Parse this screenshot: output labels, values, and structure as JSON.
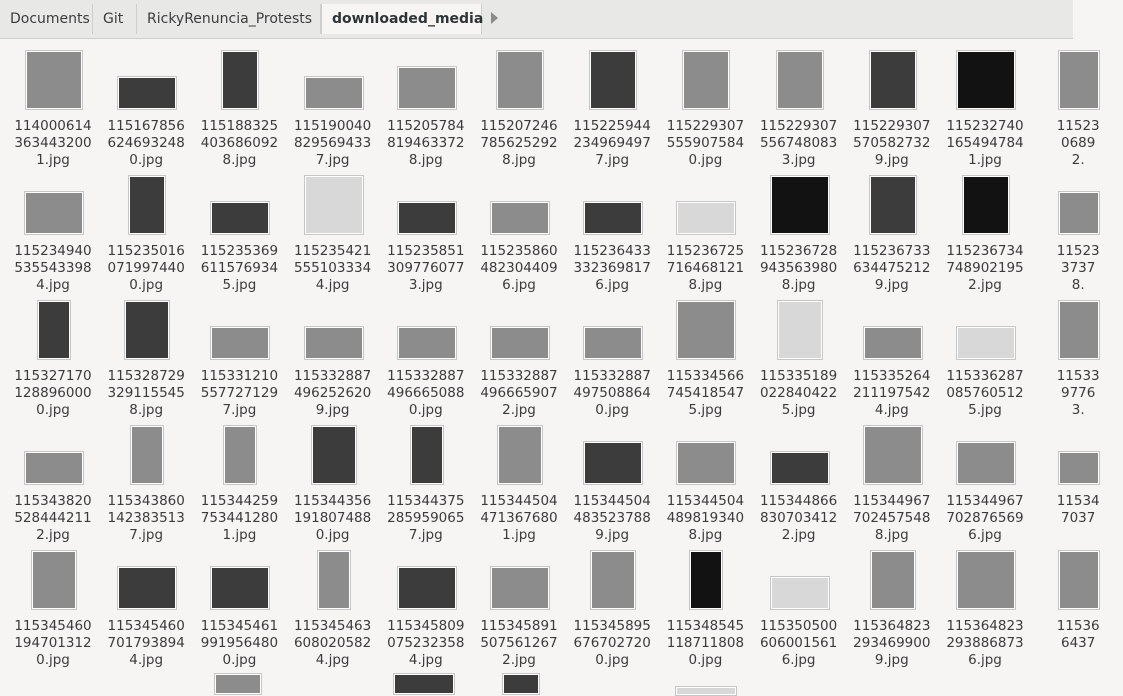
{
  "breadcrumb": [
    "Documents",
    "Git",
    "RickyRenuncia_Protests",
    "downloaded_media"
  ],
  "rows": [
    [
      {
        "l1": "114000614",
        "l2": "363443200",
        "l3": "1.jpg",
        "w": 56,
        "h": 58,
        "t": "mid"
      },
      {
        "l1": "115167856",
        "l2": "624693248",
        "l3": "0.jpg",
        "w": 58,
        "h": 32,
        "t": "dark"
      },
      {
        "l1": "115188325",
        "l2": "403686092",
        "l3": "8.jpg",
        "w": 36,
        "h": 58,
        "t": "dark"
      },
      {
        "l1": "115190040",
        "l2": "829569433",
        "l3": "7.jpg",
        "w": 58,
        "h": 32,
        "t": "mid"
      },
      {
        "l1": "115205784",
        "l2": "819463372",
        "l3": "8.jpg",
        "w": 58,
        "h": 42,
        "t": "mid"
      },
      {
        "l1": "115207246",
        "l2": "785625292",
        "l3": "8.jpg",
        "w": 46,
        "h": 58,
        "t": "mid"
      },
      {
        "l1": "115225944",
        "l2": "234969497",
        "l3": "7.jpg",
        "w": 46,
        "h": 58,
        "t": "dark"
      },
      {
        "l1": "115229307",
        "l2": "555907584",
        "l3": "0.jpg",
        "w": 46,
        "h": 58,
        "t": "mid"
      },
      {
        "l1": "115229307",
        "l2": "556748083",
        "l3": "3.jpg",
        "w": 46,
        "h": 58,
        "t": "mid"
      },
      {
        "l1": "115229307",
        "l2": "570582732",
        "l3": "9.jpg",
        "w": 46,
        "h": 58,
        "t": "dark"
      },
      {
        "l1": "115232740",
        "l2": "165494784",
        "l3": "1.jpg",
        "w": 58,
        "h": 58,
        "t": "black"
      },
      {
        "l1": "11523",
        "l2": "0689",
        "l3": "2.",
        "w": 40,
        "h": 58,
        "t": "mid"
      }
    ],
    [
      {
        "l1": "115234940",
        "l2": "535543398",
        "l3": "4.jpg",
        "w": 58,
        "h": 42,
        "t": "mid"
      },
      {
        "l1": "115235016",
        "l2": "071997440",
        "l3": "0.jpg",
        "w": 36,
        "h": 58,
        "t": "dark"
      },
      {
        "l1": "115235369",
        "l2": "611576934",
        "l3": "5.jpg",
        "w": 58,
        "h": 32,
        "t": "dark"
      },
      {
        "l1": "115235421",
        "l2": "555103334",
        "l3": "4.jpg",
        "w": 58,
        "h": 58,
        "t": "light"
      },
      {
        "l1": "115235851",
        "l2": "309776077",
        "l3": "3.jpg",
        "w": 58,
        "h": 32,
        "t": "dark"
      },
      {
        "l1": "115235860",
        "l2": "482304409",
        "l3": "6.jpg",
        "w": 58,
        "h": 32,
        "t": "mid"
      },
      {
        "l1": "115236433",
        "l2": "332369817",
        "l3": "6.jpg",
        "w": 58,
        "h": 32,
        "t": "dark"
      },
      {
        "l1": "115236725",
        "l2": "716468121",
        "l3": "8.jpg",
        "w": 58,
        "h": 32,
        "t": "light"
      },
      {
        "l1": "115236728",
        "l2": "943563980",
        "l3": "8.jpg",
        "w": 58,
        "h": 58,
        "t": "black"
      },
      {
        "l1": "115236733",
        "l2": "634475212",
        "l3": "9.jpg",
        "w": 46,
        "h": 58,
        "t": "dark"
      },
      {
        "l1": "115236734",
        "l2": "748902195",
        "l3": "2.jpg",
        "w": 46,
        "h": 58,
        "t": "black"
      },
      {
        "l1": "11523",
        "l2": "3737",
        "l3": "8.",
        "w": 40,
        "h": 42,
        "t": "mid"
      }
    ],
    [
      {
        "l1": "115327170",
        "l2": "128896000",
        "l3": "0.jpg",
        "w": 32,
        "h": 58,
        "t": "dark"
      },
      {
        "l1": "115328729",
        "l2": "329115545",
        "l3": "8.jpg",
        "w": 44,
        "h": 58,
        "t": "dark"
      },
      {
        "l1": "115331210",
        "l2": "557727129",
        "l3": "7.jpg",
        "w": 58,
        "h": 32,
        "t": "mid"
      },
      {
        "l1": "115332887",
        "l2": "496252620",
        "l3": "9.jpg",
        "w": 58,
        "h": 32,
        "t": "mid"
      },
      {
        "l1": "115332887",
        "l2": "496665088",
        "l3": "0.jpg",
        "w": 58,
        "h": 32,
        "t": "mid"
      },
      {
        "l1": "115332887",
        "l2": "496665907",
        "l3": "2.jpg",
        "w": 58,
        "h": 32,
        "t": "mid"
      },
      {
        "l1": "115332887",
        "l2": "497508864",
        "l3": "0.jpg",
        "w": 58,
        "h": 32,
        "t": "mid"
      },
      {
        "l1": "115334566",
        "l2": "745418547",
        "l3": "5.jpg",
        "w": 58,
        "h": 58,
        "t": "mid"
      },
      {
        "l1": "115335189",
        "l2": "022840422",
        "l3": "5.jpg",
        "w": 44,
        "h": 58,
        "t": "light"
      },
      {
        "l1": "115335264",
        "l2": "211197542",
        "l3": "4.jpg",
        "w": 58,
        "h": 32,
        "t": "mid"
      },
      {
        "l1": "115336287",
        "l2": "085760512",
        "l3": "5.jpg",
        "w": 58,
        "h": 32,
        "t": "light"
      },
      {
        "l1": "11533",
        "l2": "9776",
        "l3": "3.",
        "w": 40,
        "h": 58,
        "t": "mid"
      }
    ],
    [
      {
        "l1": "115343820",
        "l2": "528444211",
        "l3": "2.jpg",
        "w": 58,
        "h": 32,
        "t": "mid"
      },
      {
        "l1": "115343860",
        "l2": "142383513",
        "l3": "7.jpg",
        "w": 32,
        "h": 58,
        "t": "mid"
      },
      {
        "l1": "115344259",
        "l2": "753441280",
        "l3": "1.jpg",
        "w": 32,
        "h": 58,
        "t": "mid"
      },
      {
        "l1": "115344356",
        "l2": "191807488",
        "l3": "0.jpg",
        "w": 44,
        "h": 58,
        "t": "dark"
      },
      {
        "l1": "115344375",
        "l2": "285959065",
        "l3": "7.jpg",
        "w": 32,
        "h": 58,
        "t": "dark"
      },
      {
        "l1": "115344504",
        "l2": "471367680",
        "l3": "1.jpg",
        "w": 44,
        "h": 58,
        "t": "mid"
      },
      {
        "l1": "115344504",
        "l2": "483523788",
        "l3": "9.jpg",
        "w": 58,
        "h": 42,
        "t": "dark"
      },
      {
        "l1": "115344504",
        "l2": "489819340",
        "l3": "8.jpg",
        "w": 58,
        "h": 42,
        "t": "mid"
      },
      {
        "l1": "115344866",
        "l2": "830703412",
        "l3": "2.jpg",
        "w": 58,
        "h": 32,
        "t": "dark"
      },
      {
        "l1": "115344967",
        "l2": "702457548",
        "l3": "8.jpg",
        "w": 58,
        "h": 58,
        "t": "mid"
      },
      {
        "l1": "115344967",
        "l2": "702876569",
        "l3": "6.jpg",
        "w": 58,
        "h": 42,
        "t": "mid"
      },
      {
        "l1": "11534",
        "l2": "7037",
        "l3": "",
        "w": 40,
        "h": 32,
        "t": "mid"
      }
    ],
    [
      {
        "l1": "115345460",
        "l2": "194701312",
        "l3": "0.jpg",
        "w": 44,
        "h": 58,
        "t": "mid"
      },
      {
        "l1": "115345460",
        "l2": "701793894",
        "l3": "4.jpg",
        "w": 58,
        "h": 42,
        "t": "dark"
      },
      {
        "l1": "115345461",
        "l2": "991956480",
        "l3": "0.jpg",
        "w": 58,
        "h": 42,
        "t": "dark"
      },
      {
        "l1": "115345463",
        "l2": "608020582",
        "l3": "4.jpg",
        "w": 32,
        "h": 58,
        "t": "mid"
      },
      {
        "l1": "115345809",
        "l2": "075232358",
        "l3": "4.jpg",
        "w": 58,
        "h": 42,
        "t": "dark"
      },
      {
        "l1": "115345891",
        "l2": "507561267",
        "l3": "2.jpg",
        "w": 58,
        "h": 42,
        "t": "mid"
      },
      {
        "l1": "115345895",
        "l2": "676702720",
        "l3": "0.jpg",
        "w": 44,
        "h": 58,
        "t": "mid"
      },
      {
        "l1": "115348545",
        "l2": "118711808",
        "l3": "0.jpg",
        "w": 32,
        "h": 58,
        "t": "black"
      },
      {
        "l1": "115350500",
        "l2": "606001561",
        "l3": "6.jpg",
        "w": 58,
        "h": 32,
        "t": "light"
      },
      {
        "l1": "115364823",
        "l2": "293469900",
        "l3": "9.jpg",
        "w": 44,
        "h": 58,
        "t": "mid"
      },
      {
        "l1": "115364823",
        "l2": "293886873",
        "l3": "6.jpg",
        "w": 58,
        "h": 58,
        "t": "mid"
      },
      {
        "l1": "11536",
        "l2": "6437",
        "l3": "",
        "w": 40,
        "h": 58,
        "t": "mid"
      }
    ]
  ]
}
